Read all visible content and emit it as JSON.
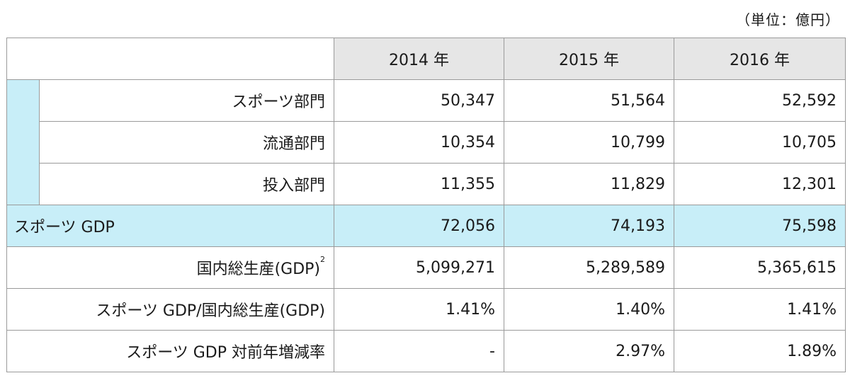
{
  "unit_label": "（単位：億円）",
  "years": [
    "2014 年",
    "2015 年",
    "2016 年"
  ],
  "sub_rows": [
    {
      "label": "スポーツ部門",
      "values": [
        "50,347",
        "51,564",
        "52,592"
      ]
    },
    {
      "label": "流通部門",
      "values": [
        "10,354",
        "10,799",
        "10,705"
      ]
    },
    {
      "label": "投入部門",
      "values": [
        "11,355",
        "11,829",
        "12,301"
      ]
    }
  ],
  "highlight_row": {
    "label": "スポーツ GDP",
    "values": [
      "72,056",
      "74,193",
      "75,598"
    ]
  },
  "other_rows": [
    {
      "label": "国内総生産(GDP)",
      "sup": "2",
      "values": [
        "5,099,271",
        "5,289,589",
        "5,365,615"
      ]
    },
    {
      "label": "スポーツ GDP/国内総生産(GDP)",
      "sup": "",
      "values": [
        "1.41%",
        "1.40%",
        "1.41%"
      ]
    },
    {
      "label": "スポーツ GDP 対前年増減率",
      "sup": "",
      "values": [
        "-",
        "2.97%",
        "1.89%"
      ]
    }
  ]
}
